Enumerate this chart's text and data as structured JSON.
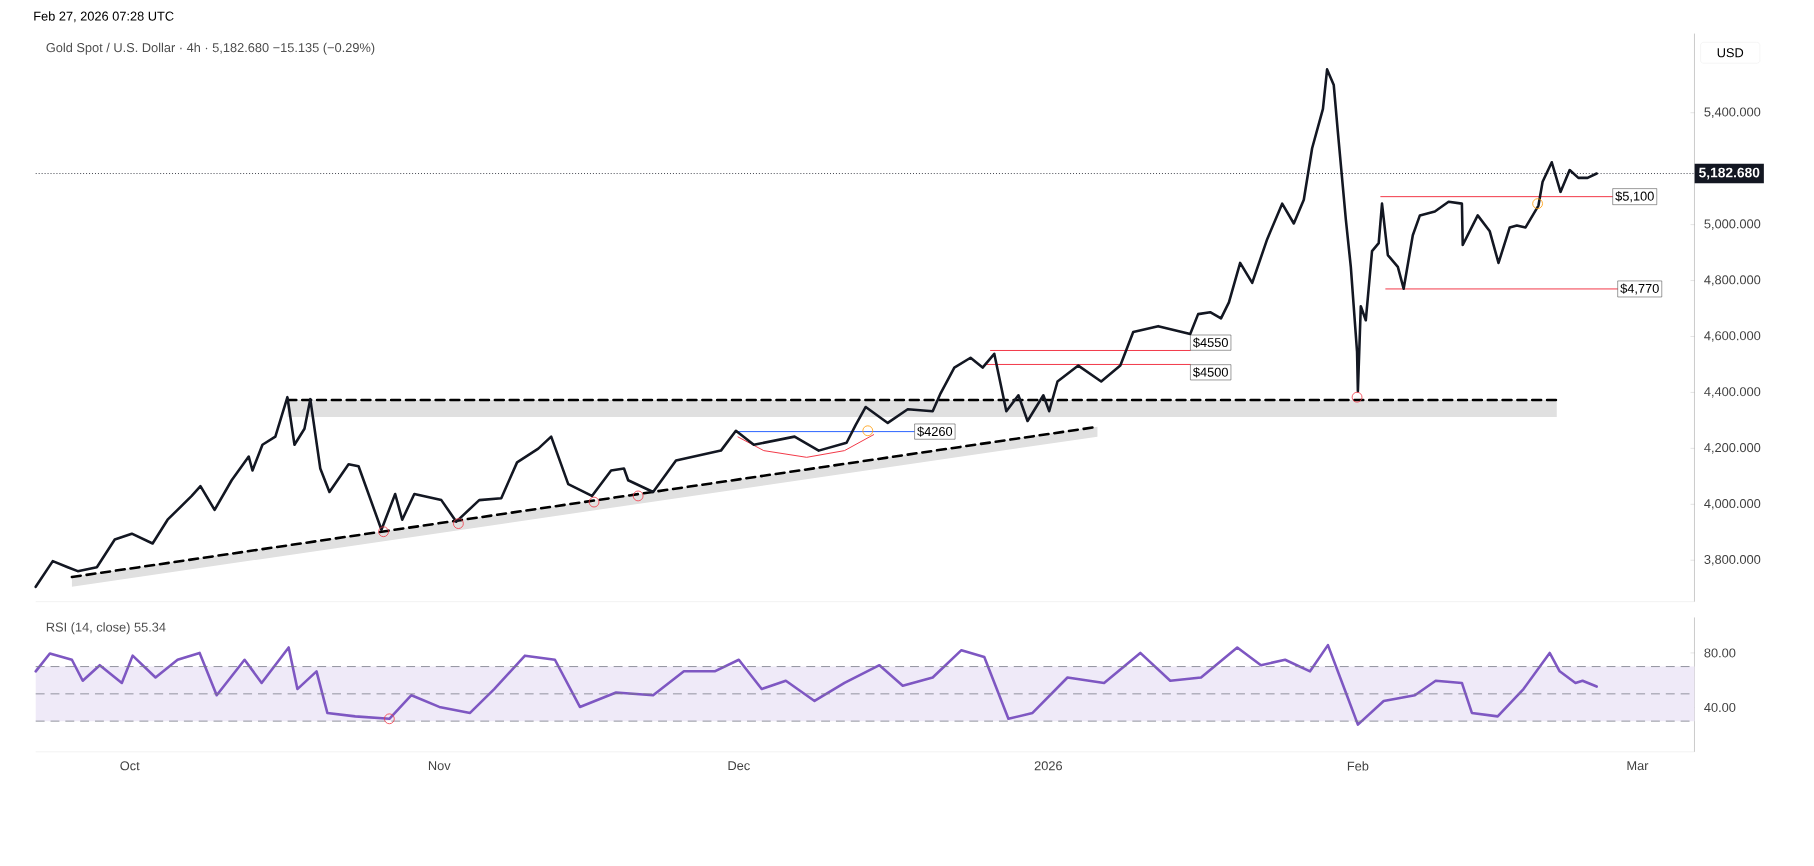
{
  "chart_data": [
    {
      "type": "line",
      "title": "Gold Spot / U.S. Dollar · 4h · 5,182.680 −15.135 (−0.29%)",
      "ylabel": "USD",
      "annotations": [
        "Feb 27, 2026 07:28 UTC",
        {
          "text": "$4260",
          "x": "2025-12-18T14:00",
          "y": 4260
        },
        {
          "text": "$4550",
          "x": "2026-01-15T05:00",
          "y": 4550
        },
        {
          "text": "$4500",
          "x": "2026-01-15T05:00",
          "y": 4500
        },
        {
          "text": "$5,100",
          "x": "2026-02-26T12:00",
          "y": 5100
        },
        {
          "text": "$4,770",
          "x": "2026-02-27T00:00",
          "y": 4770
        }
      ],
      "xlim": [
        "2025-09-21T14:00",
        "2026-03-06T17:00"
      ],
      "ylim": [
        3652,
        5683
      ],
      "yticks": [
        {
          "value": 3800,
          "label": "3,800.000"
        },
        {
          "value": 4000,
          "label": "4,000.000"
        },
        {
          "value": 4200,
          "label": "4,200.000"
        },
        {
          "value": 4400,
          "label": "4,400.000"
        },
        {
          "value": 4600,
          "label": "4,600.000"
        },
        {
          "value": 4800,
          "label": "4,800.000"
        },
        {
          "value": 5000,
          "label": "5,000.000"
        },
        {
          "value": 5400,
          "label": "5,400.000"
        }
      ],
      "tick_labels": "y",
      "ref_lines": [
        {
          "axis": "y",
          "value": 5182.68,
          "label": "5,182.680",
          "color": "#131722",
          "line_style": "dotted"
        }
      ],
      "series": [
        {
          "color": "#000000",
          "line_style": "dashed",
          "x": [
            "2025-09-25T05:00",
            "2026-01-05T22:00"
          ],
          "values": [
            3740,
            4277
          ],
          "lower": [
            3705,
            4242
          ],
          "upper": [
            3740,
            4277
          ]
        },
        {
          "color": "#000000",
          "line_style": "dashed",
          "x": [
            "2025-10-16T19:00",
            "2026-02-20T22:00"
          ],
          "values": [
            4373,
            4373
          ],
          "lower": [
            4312,
            4312
          ],
          "upper": [
            4373,
            4373
          ]
        },
        {
          "color": "#2962ff",
          "x": [
            "2025-11-30T17:00",
            "2025-12-18T14:00"
          ],
          "values": [
            4260,
            4260
          ]
        },
        {
          "color": "#f23645",
          "x": [
            "2025-12-26T05:00",
            "2026-01-15T05:00"
          ],
          "values": [
            4550,
            4550
          ]
        },
        {
          "color": "#f23645",
          "x": [
            "2025-12-25T19:00",
            "2026-01-15T05:00"
          ],
          "values": [
            4500,
            4500
          ]
        },
        {
          "color": "#f23645",
          "x": [
            "2026-02-03T07:00",
            "2026-02-26T12:00"
          ],
          "values": [
            5100,
            5100
          ]
        },
        {
          "color": "#f23645",
          "x": [
            "2026-02-03T19:00",
            "2026-02-27T00:00"
          ],
          "values": [
            4770,
            4770
          ]
        },
        {
          "color": "#f23645",
          "x": [
            "2025-11-30T22:00",
            "2025-12-03T12:00",
            "2025-12-07T19:00",
            "2025-12-11T14:00",
            "2025-12-14T12:00"
          ],
          "values": [
            4241,
            4192,
            4168,
            4192,
            4249
          ]
        },
        {
          "color": "#131722",
          "x": [
            "2025-09-21T14:00",
            "2025-09-23T07:00",
            "2025-09-24T19:00",
            "2025-09-25T19:00",
            "2025-09-27T17:00",
            "2025-09-29T12:00",
            "2025-10-01T05:00",
            "2025-10-03T07:00",
            "2025-10-04T19:00",
            "2025-10-07T05:00",
            "2025-10-08T02:00",
            "2025-10-09T12:00",
            "2025-10-11T05:00",
            "2025-10-12T22:00",
            "2025-10-13T07:00",
            "2025-10-14T07:00",
            "2025-10-15T14:00",
            "2025-10-16T19:00",
            "2025-10-17T12:00",
            "2025-10-18T12:00",
            "2025-10-19T02:00",
            "2025-10-20T02:00",
            "2025-10-21T00:00",
            "2025-10-22T22:00",
            "2025-10-23T22:00",
            "2025-10-26T05:00",
            "2025-10-27T14:00",
            "2025-10-28T07:00",
            "2025-10-29T12:00",
            "2025-11-01T05:00",
            "2025-11-02T17:00",
            "2025-11-05T00:00",
            "2025-11-07T05:00",
            "2025-11-08T19:00",
            "2025-11-10T22:00",
            "2025-11-12T05:00",
            "2025-11-13T22:00",
            "2025-11-16T07:00",
            "2025-11-18T05:00",
            "2025-11-19T12:00",
            "2025-11-19T22:00",
            "2025-11-22T10:00",
            "2025-11-24T17:00",
            "2025-11-29T05:00",
            "2025-11-30T17:00",
            "2025-12-02T12:00",
            "2025-12-06T14:00",
            "2025-12-09T00:00",
            "2025-12-11T19:00",
            "2025-12-12T17:00",
            "2025-12-13T17:00",
            "2025-12-15T22:00",
            "2025-12-17T22:00",
            "2025-12-20T10:00",
            "2025-12-21T05:00",
            "2025-12-22T14:00",
            "2025-12-24T05:00",
            "2025-12-25T10:00",
            "2025-12-26T14:00",
            "2025-12-27T19:00",
            "2025-12-29T00:00",
            "2025-12-29T22:00",
            "2025-12-31T12:00",
            "2026-01-01T02:00",
            "2026-01-01T22:00",
            "2026-01-04T00:00",
            "2026-01-06T07:00",
            "2026-01-08T05:00",
            "2026-01-09T12:00",
            "2026-01-12T00:00",
            "2026-01-15T05:00",
            "2026-01-16T00:00",
            "2026-01-17T05:00",
            "2026-01-18T07:00",
            "2026-01-19T02:00",
            "2026-01-20T05:00",
            "2026-01-21T10:00",
            "2026-01-22T22:00",
            "2026-01-24T10:00",
            "2026-01-25T14:00",
            "2026-01-26T14:00",
            "2026-01-27T10:00",
            "2026-01-28T12:00",
            "2026-01-28T22:00",
            "2026-01-29T14:00",
            "2026-01-30T00:00",
            "2026-01-30T19:00",
            "2026-01-31T07:00",
            "2026-01-31T22:00",
            "2026-02-01T00:00",
            "2026-02-01T07:00",
            "2026-02-01T19:00",
            "2026-02-02T10:00",
            "2026-02-03T02:00",
            "2026-02-03T10:00",
            "2026-02-04T00:00",
            "2026-02-05T00:00",
            "2026-02-05T14:00",
            "2026-02-06T12:00",
            "2026-02-07T05:00",
            "2026-02-08T17:00",
            "2026-02-10T02:00",
            "2026-02-11T10:00",
            "2026-02-11T12:00",
            "2026-02-13T00:00",
            "2026-02-14T05:00",
            "2026-02-15T02:00",
            "2026-02-16T05:00",
            "2026-02-16T22:00",
            "2026-02-17T19:00",
            "2026-02-19T02:00",
            "2026-02-19T12:00",
            "2026-02-20T10:00",
            "2026-02-21T07:00",
            "2026-02-22T05:00",
            "2026-02-23T02:00",
            "2026-02-24T00:00",
            "2026-02-24T22:00"
          ],
          "values": [
            3705,
            3797,
            3775,
            3761,
            3775,
            3874,
            3895,
            3860,
            3945,
            4030,
            4065,
            3980,
            4086,
            4171,
            4121,
            4213,
            4242,
            4383,
            4213,
            4270,
            4376,
            4128,
            4044,
            4143,
            4136,
            3909,
            4037,
            3945,
            4037,
            4015,
            3938,
            4015,
            4022,
            4150,
            4199,
            4242,
            4072,
            4030,
            4121,
            4128,
            4086,
            4044,
            4157,
            4192,
            4263,
            4213,
            4242,
            4192,
            4220,
            4284,
            4348,
            4291,
            4340,
            4333,
            4397,
            4489,
            4524,
            4489,
            4538,
            4333,
            4390,
            4298,
            4390,
            4333,
            4439,
            4496,
            4439,
            4496,
            4616,
            4637,
            4609,
            4680,
            4687,
            4665,
            4722,
            4863,
            4792,
            4948,
            5075,
            5004,
            5089,
            5273,
            5414,
            5555,
            5499,
            5329,
            5019,
            4849,
            4545,
            4404,
            4708,
            4658,
            4905,
            4934,
            5075,
            4891,
            4849,
            4771,
            4962,
            5033,
            5047,
            5082,
            5075,
            4927,
            5033,
            4976,
            4863,
            4990,
            4997,
            4990,
            5068,
            5153,
            5223,
            5117,
            5195,
            5167,
            5167,
            5182.68
          ]
        },
        {
          "type": "scatter",
          "marker": "circle",
          "color": "#f23645",
          "x": [
            "2025-10-26T10:00",
            "2025-11-02T22:00",
            "2025-11-16T12:00",
            "2025-11-20T22:00",
            "2026-01-31T22:00"
          ],
          "values": [
            3902,
            3931,
            4008,
            4030,
            4383
          ]
        },
        {
          "type": "scatter",
          "marker": "circle",
          "color": "#ff9800",
          "x": [
            "2025-12-13T22:00",
            "2026-02-19T00:00"
          ],
          "values": [
            4263,
            5075
          ]
        }
      ]
    },
    {
      "type": "line",
      "title": "RSI (14, close) 55.34",
      "xlim": [
        "2025-09-21T14:00",
        "2026-03-06T17:00"
      ],
      "ylim": [
        7.5,
        106
      ],
      "xticks": [
        {
          "value": "2025-10-01",
          "label": "Oct"
        },
        {
          "value": "2025-11-01",
          "label": "Nov"
        },
        {
          "value": "2025-12-01",
          "label": "Dec"
        },
        {
          "value": "2026-01-01",
          "label": "2026"
        },
        {
          "value": "2026-02-01",
          "label": "Feb"
        },
        {
          "value": "2026-03-01",
          "label": "Mar"
        }
      ],
      "yticks": [
        {
          "value": 40,
          "label": "40.00"
        },
        {
          "value": 80,
          "label": "80.00"
        }
      ],
      "bands": [
        {
          "axis": "y",
          "from": 30,
          "to": 70,
          "color": "#efeaf8"
        }
      ],
      "ref_lines": [
        {
          "axis": "y",
          "value": 70,
          "color": "#787b86",
          "line_style": "dashed"
        },
        {
          "axis": "y",
          "value": 50,
          "color": "#787b86",
          "line_style": "dashed"
        },
        {
          "axis": "y",
          "value": 30,
          "color": "#787b86",
          "line_style": "dashed"
        }
      ],
      "series": [
        {
          "color": "#7e57c2",
          "x": [
            "2025-09-21T14:00",
            "2025-09-23T00:00",
            "2025-09-25T05:00",
            "2025-09-26T07:00",
            "2025-09-28T00:00",
            "2025-09-30T05:00",
            "2025-10-01T07:00",
            "2025-10-03T14:00",
            "2025-10-05T19:00",
            "2025-10-08T00:00",
            "2025-10-09T17:00",
            "2025-10-12T12:00",
            "2025-10-14T05:00",
            "2025-10-16T22:00",
            "2025-10-17T19:00",
            "2025-10-19T17:00",
            "2025-10-20T19:00",
            "2025-10-23T14:00",
            "2025-10-27T00:00",
            "2025-10-29T05:00",
            "2025-11-01T00:00",
            "2025-11-04T02:00",
            "2025-11-06T12:00",
            "2025-11-09T14:00",
            "2025-11-12T14:00",
            "2025-11-15T02:00",
            "2025-11-18T17:00",
            "2025-11-22T10:00",
            "2025-11-25T12:00",
            "2025-11-28T14:00",
            "2025-12-01T00:00",
            "2025-12-03T07:00",
            "2025-12-05T17:00",
            "2025-12-08T14:00",
            "2025-12-11T14:00",
            "2025-12-15T02:00",
            "2025-12-17T10:00",
            "2025-12-20T10:00",
            "2025-12-23T07:00",
            "2025-12-25T14:00",
            "2025-12-28T00:00",
            "2025-12-30T10:00",
            "2026-01-02T22:00",
            "2026-01-06T14:00",
            "2026-01-10T05:00",
            "2026-01-13T05:00",
            "2026-01-16T07:00",
            "2026-01-19T22:00",
            "2026-01-22T07:00",
            "2026-01-24T17:00",
            "2026-01-27T05:00",
            "2026-01-29T00:00",
            "2026-01-30T19:00",
            "2026-02-01T00:00",
            "2026-02-03T14:00",
            "2026-02-06T17:00",
            "2026-02-08T19:00",
            "2026-02-11T10:00",
            "2026-02-12T10:00",
            "2026-02-15T00:00",
            "2026-02-17T14:00",
            "2026-02-20T05:00",
            "2026-02-21T05:00",
            "2026-02-22T19:00",
            "2026-02-23T12:00",
            "2026-02-24T22:00"
          ],
          "values": [
            66.5,
            79.6,
            75,
            59.6,
            71,
            58,
            78,
            62,
            75,
            80,
            49,
            75,
            58,
            84,
            53.5,
            66.5,
            36,
            33.5,
            31.7,
            49,
            40.4,
            36,
            53.5,
            78,
            75,
            40.4,
            51,
            49,
            66.5,
            66.5,
            75,
            53.5,
            59.6,
            44.8,
            58,
            71,
            56,
            62,
            82,
            77,
            31.7,
            36,
            62,
            58,
            80,
            59.6,
            62,
            84,
            71,
            75,
            66.5,
            85.7,
            51,
            27.4,
            44.8,
            49,
            59.6,
            58,
            36,
            33.5,
            53.5,
            80,
            66.5,
            58,
            59.6,
            55.34
          ]
        },
        {
          "type": "scatter",
          "marker": "circle",
          "color": "#f23645",
          "x": [
            "2025-10-27T00:00"
          ],
          "values": [
            31.7
          ]
        }
      ]
    }
  ]
}
